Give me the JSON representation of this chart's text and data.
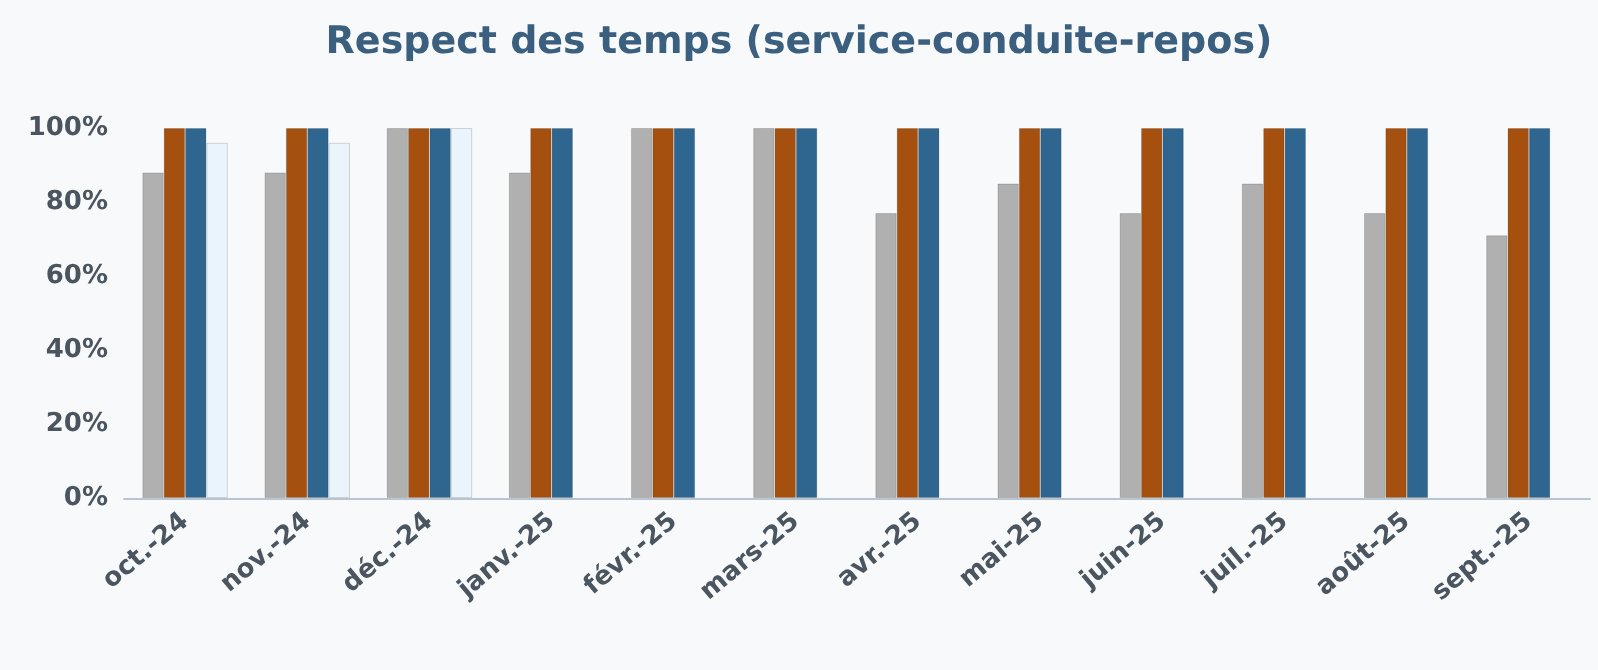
{
  "chart_data": {
    "type": "bar",
    "title": "Respect des temps (service-conduite-repos)",
    "categories": [
      "oct.-24",
      "nov.-24",
      "déc.-24",
      "janv.-25",
      "févr.-25",
      "mars-25",
      "avr.-25",
      "mai-25",
      "juin-25",
      "juil.-25",
      "août-25",
      "sept.-25"
    ],
    "series": [
      {
        "color": "#b0b0b0",
        "values": [
          88,
          88,
          100,
          88,
          100,
          100,
          77,
          85,
          77,
          85,
          77,
          71
        ]
      },
      {
        "color": "#a5500f",
        "values": [
          100,
          100,
          100,
          100,
          100,
          100,
          100,
          100,
          100,
          100,
          100,
          100
        ]
      },
      {
        "color": "#2f6690",
        "values": [
          100,
          100,
          100,
          100,
          100,
          100,
          100,
          100,
          100,
          100,
          100,
          100
        ]
      },
      {
        "color": "#eaf4fc",
        "values": [
          96,
          96,
          100,
          null,
          null,
          null,
          null,
          null,
          null,
          null,
          null,
          null
        ]
      }
    ],
    "ylim": [
      0,
      100
    ],
    "yticks": [
      {
        "value": 0,
        "label": "0%"
      },
      {
        "value": 20,
        "label": "20%"
      },
      {
        "value": 40,
        "label": "40%"
      },
      {
        "value": 60,
        "label": "60%"
      },
      {
        "value": 80,
        "label": "80%"
      },
      {
        "value": 100,
        "label": "100%"
      }
    ],
    "grid": false
  }
}
